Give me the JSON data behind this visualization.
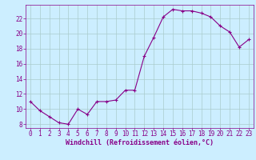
{
  "x": [
    0,
    1,
    2,
    3,
    4,
    5,
    6,
    7,
    8,
    9,
    10,
    11,
    12,
    13,
    14,
    15,
    16,
    17,
    18,
    19,
    20,
    21,
    22,
    23
  ],
  "y": [
    11,
    9.8,
    9.0,
    8.2,
    8.0,
    10.0,
    9.3,
    11.0,
    11.0,
    11.2,
    12.5,
    12.5,
    17.0,
    19.5,
    22.2,
    23.2,
    23.0,
    23.0,
    22.7,
    22.2,
    21.0,
    20.2,
    18.2,
    19.2
  ],
  "line_color": "#880088",
  "marker": "+",
  "xlabel": "Windchill (Refroidissement éolien,°C)",
  "xlim": [
    -0.5,
    23.5
  ],
  "ylim": [
    7.5,
    23.8
  ],
  "yticks": [
    8,
    10,
    12,
    14,
    16,
    18,
    20,
    22
  ],
  "xticks": [
    0,
    1,
    2,
    3,
    4,
    5,
    6,
    7,
    8,
    9,
    10,
    11,
    12,
    13,
    14,
    15,
    16,
    17,
    18,
    19,
    20,
    21,
    22,
    23
  ],
  "bg_color": "#cceeff",
  "grid_color": "#aacccc",
  "tick_color": "#880088",
  "label_color": "#880088",
  "font_size": 5.5,
  "xlabel_fontsize": 6.0,
  "markersize": 3,
  "linewidth": 0.8
}
